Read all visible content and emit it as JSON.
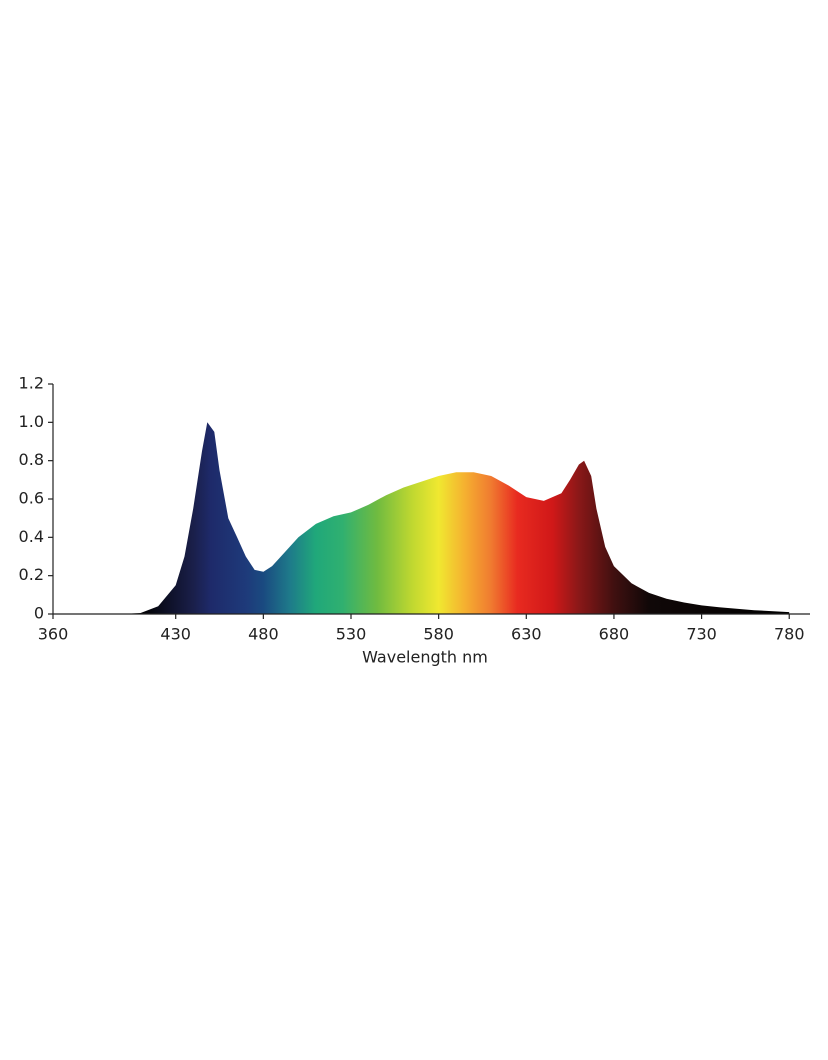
{
  "chart_data": {
    "type": "area",
    "x_label": "Wavelength  nm",
    "x": [
      400,
      410,
      420,
      430,
      435,
      440,
      445,
      448,
      452,
      455,
      460,
      465,
      470,
      475,
      480,
      485,
      490,
      500,
      510,
      520,
      530,
      540,
      550,
      560,
      570,
      580,
      590,
      600,
      610,
      620,
      630,
      640,
      650,
      655,
      660,
      663,
      667,
      670,
      675,
      680,
      690,
      700,
      710,
      720,
      730,
      740,
      760,
      780
    ],
    "values": [
      0,
      0.005,
      0.04,
      0.15,
      0.3,
      0.55,
      0.85,
      1.0,
      0.95,
      0.75,
      0.5,
      0.4,
      0.3,
      0.23,
      0.22,
      0.25,
      0.3,
      0.4,
      0.47,
      0.51,
      0.53,
      0.57,
      0.62,
      0.66,
      0.69,
      0.72,
      0.74,
      0.74,
      0.72,
      0.67,
      0.61,
      0.59,
      0.63,
      0.7,
      0.78,
      0.8,
      0.72,
      0.55,
      0.35,
      0.25,
      0.16,
      0.11,
      0.08,
      0.06,
      0.045,
      0.035,
      0.02,
      0.01
    ],
    "color_stops": [
      {
        "x": 410,
        "color": "#000000"
      },
      {
        "x": 440,
        "color": "#1a1f4a"
      },
      {
        "x": 450,
        "color": "#1e2a6a"
      },
      {
        "x": 470,
        "color": "#1e3a7a"
      },
      {
        "x": 480,
        "color": "#1a4a80"
      },
      {
        "x": 495,
        "color": "#1e7a8a"
      },
      {
        "x": 510,
        "color": "#20a87a"
      },
      {
        "x": 525,
        "color": "#30b070"
      },
      {
        "x": 545,
        "color": "#70bb40"
      },
      {
        "x": 565,
        "color": "#c0d830"
      },
      {
        "x": 580,
        "color": "#f0e830"
      },
      {
        "x": 595,
        "color": "#f5b030"
      },
      {
        "x": 610,
        "color": "#f07a30"
      },
      {
        "x": 625,
        "color": "#e82a20"
      },
      {
        "x": 645,
        "color": "#d01818"
      },
      {
        "x": 660,
        "color": "#8a1818"
      },
      {
        "x": 680,
        "color": "#401010"
      },
      {
        "x": 700,
        "color": "#100808"
      },
      {
        "x": 780,
        "color": "#000000"
      }
    ],
    "xlim": [
      360,
      785
    ],
    "xticks": [
      360,
      430,
      480,
      530,
      580,
      630,
      680,
      730,
      780
    ],
    "ylim": [
      0,
      1.2
    ],
    "yticks": [
      0,
      0.2,
      0.4,
      0.6,
      0.8,
      {
        "value": 1,
        "label": "1.0"
      },
      1.2
    ],
    "grid": false
  }
}
